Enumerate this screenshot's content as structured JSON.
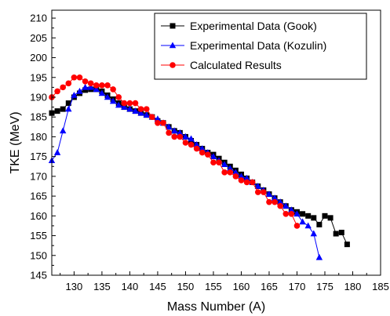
{
  "chart_data": {
    "type": "scatter",
    "title": "",
    "xlabel": "Mass Number (A)",
    "ylabel": "TKE (MeV)",
    "xlim": [
      126,
      185
    ],
    "ylim": [
      145,
      212
    ],
    "xticks": [
      130,
      135,
      140,
      145,
      150,
      155,
      160,
      165,
      170,
      175,
      180,
      185
    ],
    "yticks": [
      145,
      150,
      155,
      160,
      165,
      170,
      175,
      180,
      185,
      190,
      195,
      200,
      205,
      210
    ],
    "grid": false,
    "legend_position": "top-right",
    "series": [
      {
        "name": "Experimental Data (Gook)",
        "color": "#000000",
        "marker": "square",
        "x": [
          126,
          127,
          128,
          129,
          130,
          131,
          132,
          133,
          134,
          135,
          136,
          137,
          138,
          139,
          140,
          141,
          142,
          143,
          144,
          145,
          146,
          147,
          148,
          149,
          150,
          151,
          152,
          153,
          154,
          155,
          156,
          157,
          158,
          159,
          160,
          161,
          162,
          163,
          164,
          165,
          166,
          167,
          168,
          169,
          170,
          171,
          172,
          173,
          174,
          175,
          176,
          177,
          178,
          179
        ],
        "y": [
          186,
          186.5,
          187,
          188.5,
          190,
          191,
          191.8,
          192,
          192,
          191.5,
          190.5,
          189.5,
          188.5,
          187.5,
          187,
          186.5,
          186,
          185.5,
          185,
          184,
          183.5,
          182.5,
          181.5,
          181,
          180,
          179,
          178,
          177,
          176,
          175.5,
          174.5,
          173.5,
          172.5,
          171.5,
          170.5,
          169.5,
          168.5,
          167.5,
          166.5,
          165.5,
          164.5,
          163.5,
          162.5,
          161.5,
          161,
          160.5,
          160,
          159.5,
          157.8,
          160,
          159.5,
          155.5,
          155.8,
          152.8
        ]
      },
      {
        "name": "Experimental Data (Kozulin)",
        "color": "#0000ff",
        "marker": "triangle",
        "x": [
          126,
          127,
          128,
          129,
          130,
          131,
          132,
          133,
          134,
          135,
          136,
          137,
          138,
          139,
          140,
          141,
          142,
          143,
          144,
          145,
          146,
          147,
          148,
          149,
          150,
          151,
          152,
          153,
          154,
          155,
          156,
          157,
          158,
          159,
          160,
          161,
          162,
          163,
          164,
          165,
          166,
          167,
          168,
          169,
          170,
          171,
          172,
          173,
          174
        ],
        "y": [
          174,
          176,
          181.5,
          187,
          190.5,
          191.5,
          192.5,
          192.5,
          192,
          191,
          190,
          189,
          188,
          187.5,
          187,
          186.5,
          186,
          185.5,
          185,
          184.5,
          183.5,
          182.5,
          181.5,
          181,
          180,
          179.5,
          178,
          177,
          176,
          175,
          174,
          173,
          172,
          171,
          170,
          169.5,
          168.5,
          167.5,
          166.5,
          165.5,
          164.5,
          163.5,
          162.5,
          161.5,
          160.5,
          158.5,
          157.5,
          155.5,
          149.5
        ]
      },
      {
        "name": "Calculated Results",
        "color": "#ff0000",
        "marker": "circle",
        "x": [
          126,
          127,
          128,
          129,
          130,
          131,
          132,
          133,
          134,
          135,
          136,
          137,
          138,
          139,
          140,
          141,
          142,
          143,
          144,
          145,
          146,
          147,
          148,
          149,
          150,
          151,
          152,
          153,
          154,
          155,
          156,
          157,
          158,
          159,
          160,
          161,
          162,
          163,
          164,
          165,
          166,
          167,
          168,
          169,
          170
        ],
        "y": [
          190,
          191.5,
          192.5,
          193.5,
          195,
          195,
          194,
          193.5,
          193,
          193,
          193,
          192,
          190,
          188.5,
          188.5,
          188.5,
          187,
          187,
          185,
          183.5,
          183.5,
          181,
          180,
          180,
          178.5,
          178,
          177,
          176,
          175.5,
          173.5,
          173.5,
          171,
          171,
          170,
          169,
          168.5,
          168.5,
          166,
          166,
          163.5,
          163.5,
          162.5,
          160.5,
          160.5,
          157.5
        ]
      }
    ]
  }
}
